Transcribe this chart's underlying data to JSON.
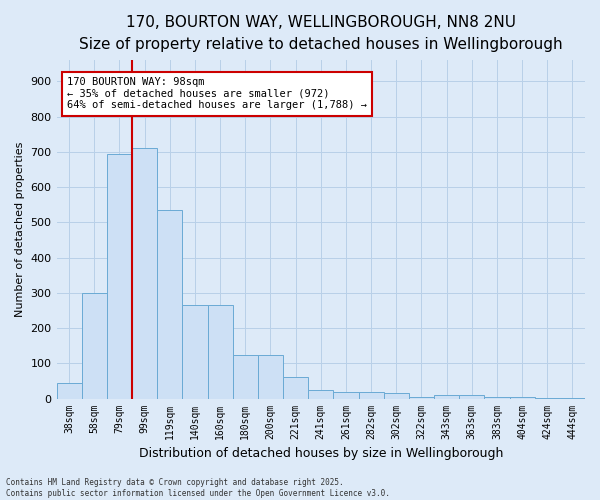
{
  "title_line1": "170, BOURTON WAY, WELLINGBOROUGH, NN8 2NU",
  "title_line2": "Size of property relative to detached houses in Wellingborough",
  "xlabel": "Distribution of detached houses by size in Wellingborough",
  "ylabel": "Number of detached properties",
  "categories": [
    "38sqm",
    "58sqm",
    "79sqm",
    "99sqm",
    "119sqm",
    "140sqm",
    "160sqm",
    "180sqm",
    "200sqm",
    "221sqm",
    "241sqm",
    "261sqm",
    "282sqm",
    "302sqm",
    "322sqm",
    "343sqm",
    "363sqm",
    "383sqm",
    "404sqm",
    "424sqm",
    "444sqm"
  ],
  "values": [
    45,
    300,
    695,
    710,
    535,
    265,
    265,
    125,
    125,
    60,
    25,
    20,
    20,
    15,
    5,
    10,
    10,
    5,
    5,
    2,
    2
  ],
  "bar_color": "#cde0f5",
  "bar_edge_color": "#6aaad4",
  "grid_color": "#b8d0e8",
  "background_color": "#ddeaf8",
  "annotation_box_color": "#ffffff",
  "annotation_box_edge": "#cc0000",
  "vline_color": "#cc0000",
  "vline_x_index": 3,
  "annotation_text_line1": "170 BOURTON WAY: 98sqm",
  "annotation_text_line2": "← 35% of detached houses are smaller (972)",
  "annotation_text_line3": "64% of semi-detached houses are larger (1,788) →",
  "annotation_fontsize": 7.5,
  "title_fontsize1": 11,
  "title_fontsize2": 10,
  "footer_text": "Contains HM Land Registry data © Crown copyright and database right 2025.\nContains public sector information licensed under the Open Government Licence v3.0.",
  "ylim": [
    0,
    960
  ],
  "yticks": [
    0,
    100,
    200,
    300,
    400,
    500,
    600,
    700,
    800,
    900
  ]
}
